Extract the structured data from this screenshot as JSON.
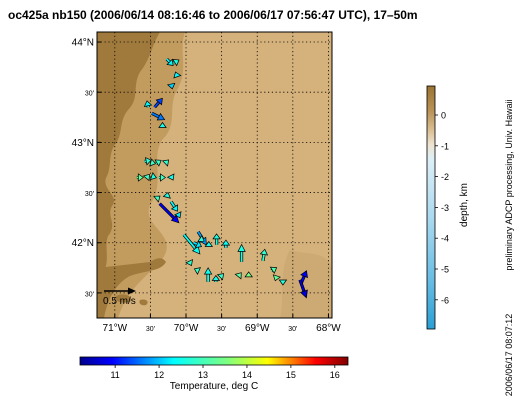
{
  "title": "oc425a nb150 (2006/06/14 08:16:46 to 2006/06/17 07:56:47 UTC), 17–50m",
  "map": {
    "lon_range": [
      -71.25,
      -67.95
    ],
    "lat_range": [
      41.25,
      44.1
    ],
    "lat_labels": [
      {
        "lat": 44.0,
        "text": "44°N"
      },
      {
        "lat": 43.5,
        "text": "30'"
      },
      {
        "lat": 43.0,
        "text": "43°N"
      },
      {
        "lat": 42.5,
        "text": "30'"
      },
      {
        "lat": 42.0,
        "text": "42°N"
      },
      {
        "lat": 41.5,
        "text": "30'"
      }
    ],
    "lon_labels": [
      {
        "lon": -71.0,
        "text": "71°W"
      },
      {
        "lon": -70.5,
        "text": "30'"
      },
      {
        "lon": -70.0,
        "text": "70°W"
      },
      {
        "lon": -69.5,
        "text": "30'"
      },
      {
        "lon": -69.0,
        "text": "69°W"
      },
      {
        "lon": -68.5,
        "text": "30'"
      },
      {
        "lon": -68.0,
        "text": "68°W"
      }
    ],
    "scale_arrow_label": "0.5 m/s",
    "colors": {
      "land": "#a07a3c",
      "shelf": "#c9a56c",
      "deep": "#d5b27c",
      "grid": "#000000"
    }
  },
  "depth_colorbar": {
    "label": "depth, km",
    "ticks": [
      "0",
      "-1",
      "-2",
      "-3",
      "-4",
      "-5",
      "-6"
    ]
  },
  "temp_colorbar": {
    "label": "Temperature, deg C",
    "ticks": [
      "11",
      "12",
      "13",
      "14",
      "15",
      "16"
    ],
    "range": [
      10.2,
      16.3
    ]
  },
  "side_credit": "preliminary ADCP processing,  Univ. Hawaii",
  "timestamp": "2006/06/17 08:07:12",
  "chart_data": {
    "type": "vector-map",
    "vectors": [
      {
        "lon": -70.27,
        "lat": 43.83,
        "u": 0.1,
        "v": -0.1,
        "temp": 12.3
      },
      {
        "lon": -70.17,
        "lat": 43.79,
        "u": 0.08,
        "v": 0.05,
        "temp": 12.6
      },
      {
        "lon": -70.12,
        "lat": 43.65,
        "u": -0.03,
        "v": 0.08,
        "temp": 12.3
      },
      {
        "lon": -70.21,
        "lat": 43.59,
        "u": 0.02,
        "v": -0.09,
        "temp": 12.1
      },
      {
        "lon": -70.44,
        "lat": 43.35,
        "u": 0.12,
        "v": 0.14,
        "temp": 11.3
      },
      {
        "lon": -70.48,
        "lat": 43.29,
        "u": 0.2,
        "v": -0.1,
        "temp": 11.6
      },
      {
        "lon": -70.53,
        "lat": 43.35,
        "u": -0.02,
        "v": 0.1,
        "temp": 12.3
      },
      {
        "lon": -70.33,
        "lat": 43.16,
        "u": 0.0,
        "v": 0.06,
        "temp": 12.5
      },
      {
        "lon": -70.58,
        "lat": 42.81,
        "u": 0.1,
        "v": 0.02,
        "temp": 12.7
      },
      {
        "lon": -70.5,
        "lat": 42.8,
        "u": 0.08,
        "v": -0.02,
        "temp": 12.9
      },
      {
        "lon": -70.42,
        "lat": 42.79,
        "u": 0.08,
        "v": 0.05,
        "temp": 12.9
      },
      {
        "lon": -70.28,
        "lat": 42.8,
        "u": 0.04,
        "v": 0.04,
        "temp": 12.8
      },
      {
        "lon": -70.69,
        "lat": 42.65,
        "u": 0.1,
        "v": 0.0,
        "temp": 13.3
      },
      {
        "lon": -70.55,
        "lat": 42.65,
        "u": 0.04,
        "v": 0.05,
        "temp": 12.9
      },
      {
        "lon": -70.47,
        "lat": 42.66,
        "u": 0.06,
        "v": -0.02,
        "temp": 12.6
      },
      {
        "lon": -70.38,
        "lat": 42.65,
        "u": 0.1,
        "v": 0.0,
        "temp": 12.9
      },
      {
        "lon": -70.2,
        "lat": 42.65,
        "u": 0.02,
        "v": -0.04,
        "temp": 12.5
      },
      {
        "lon": -70.41,
        "lat": 42.44,
        "u": 0.05,
        "v": 0.04,
        "temp": 12.9
      },
      {
        "lon": -70.27,
        "lat": 42.45,
        "u": 0.02,
        "v": 0.08,
        "temp": 12.6
      },
      {
        "lon": -70.21,
        "lat": 42.41,
        "u": 0.1,
        "v": -0.15,
        "temp": 12.3
      },
      {
        "lon": -70.12,
        "lat": 42.3,
        "u": 0.04,
        "v": -0.08,
        "temp": 12.2
      },
      {
        "lon": -70.37,
        "lat": 42.39,
        "u": 0.3,
        "v": -0.3,
        "temp": 10.9
      },
      {
        "lon": -70.03,
        "lat": 42.08,
        "u": 0.25,
        "v": -0.3,
        "temp": 12.4
      },
      {
        "lon": -69.83,
        "lat": 42.11,
        "u": 0.13,
        "v": -0.21,
        "temp": 11.8
      },
      {
        "lon": -69.89,
        "lat": 42.0,
        "u": 0.12,
        "v": -0.06,
        "temp": 12.2
      },
      {
        "lon": -69.8,
        "lat": 42.04,
        "u": 0.06,
        "v": -0.04,
        "temp": 12.7
      },
      {
        "lon": -69.68,
        "lat": 41.98,
        "u": 0.0,
        "v": 0.05,
        "temp": 12.5
      },
      {
        "lon": -69.57,
        "lat": 41.98,
        "u": 0.0,
        "v": 0.17,
        "temp": 12.6
      },
      {
        "lon": -69.44,
        "lat": 41.95,
        "u": 0.0,
        "v": 0.12,
        "temp": 12.4
      },
      {
        "lon": -69.22,
        "lat": 41.81,
        "u": 0.0,
        "v": 0.27,
        "temp": 12.6
      },
      {
        "lon": -69.95,
        "lat": 41.81,
        "u": 0.03,
        "v": -0.06,
        "temp": 12.8
      },
      {
        "lon": -69.82,
        "lat": 41.72,
        "u": -0.07,
        "v": 0.03,
        "temp": 12.9
      },
      {
        "lon": -69.69,
        "lat": 41.61,
        "u": 0.0,
        "v": 0.22,
        "temp": 12.5
      },
      {
        "lon": -69.58,
        "lat": 41.61,
        "u": 0.0,
        "v": 0.1,
        "temp": 12.5
      },
      {
        "lon": -69.49,
        "lat": 41.68,
        "u": 0.02,
        "v": 0.02,
        "temp": 12.8
      },
      {
        "lon": -69.26,
        "lat": 41.67,
        "u": 0.04,
        "v": 0.05,
        "temp": 13.2
      },
      {
        "lon": -69.12,
        "lat": 41.69,
        "u": 0.0,
        "v": 0.03,
        "temp": 13.5
      },
      {
        "lon": -68.92,
        "lat": 41.82,
        "u": 0.03,
        "v": 0.18,
        "temp": 12.8
      },
      {
        "lon": -68.8,
        "lat": 41.72,
        "u": 0.08,
        "v": 0.05,
        "temp": 13.1
      },
      {
        "lon": -68.73,
        "lat": 41.66,
        "u": -0.02,
        "v": -0.06,
        "temp": 13.3
      },
      {
        "lon": -68.64,
        "lat": 41.63,
        "u": 0.0,
        "v": -0.08,
        "temp": 12.7
      },
      {
        "lon": -68.38,
        "lat": 41.6,
        "u": 0.08,
        "v": 0.19,
        "temp": 10.9
      },
      {
        "lon": -68.4,
        "lat": 41.63,
        "u": 0.1,
        "v": -0.28,
        "temp": 10.7
      }
    ]
  }
}
